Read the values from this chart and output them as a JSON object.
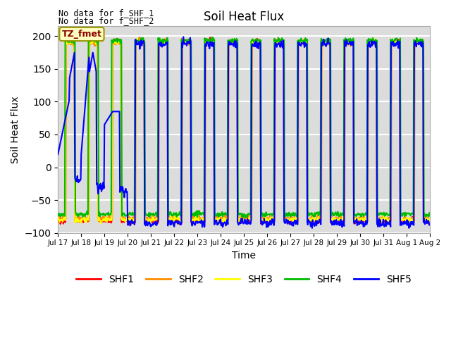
{
  "title": "Soil Heat Flux",
  "ylabel": "Soil Heat Flux",
  "xlabel": "Time",
  "note_line1": "No data for f_SHF_1",
  "note_line2": "No data for f_SHF_2",
  "tz_label": "TZ_fmet",
  "ylim": [
    -100,
    215
  ],
  "yticks": [
    -100,
    -50,
    0,
    50,
    100,
    150,
    200
  ],
  "colors": {
    "SHF1": "#FF0000",
    "SHF2": "#FF8C00",
    "SHF3": "#FFFF00",
    "SHF4": "#00BB00",
    "SHF5": "#0000FF"
  },
  "background_color": "#DCDCDC",
  "grid_color": "white",
  "lw": 1.5
}
